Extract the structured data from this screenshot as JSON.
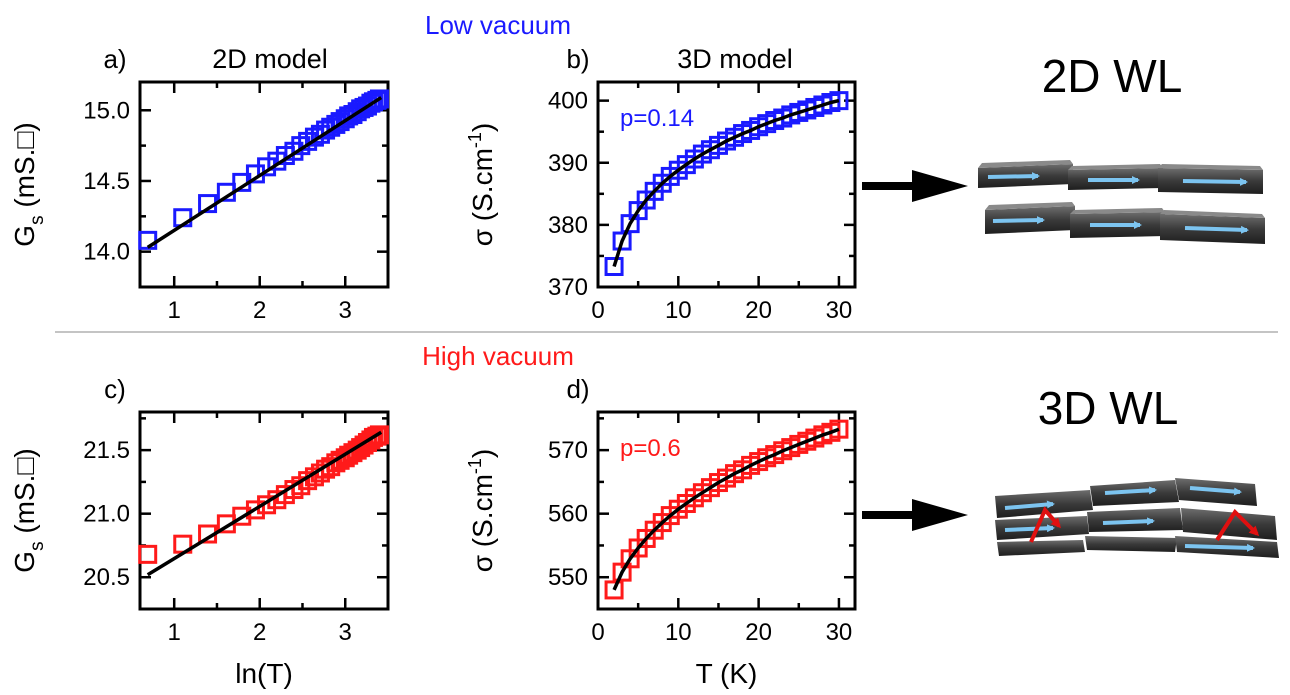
{
  "sections": {
    "top": {
      "label": "Low vacuum",
      "color": "#1a1aff"
    },
    "bottom": {
      "label": "High vacuum",
      "color": "#ff1a1a"
    }
  },
  "colors": {
    "fit": "#000000",
    "low": "#1a1aff",
    "high": "#ff1a1a",
    "arrow": "#000000",
    "flake_arrow": "#7cc4f0",
    "scatter_arrow": "#e01010"
  },
  "illustrations": [
    {
      "id": "2d",
      "label": "2D WL",
      "icons": [
        "graphene-flake-stack-icon"
      ]
    },
    {
      "id": "3d",
      "label": "3D WL",
      "icons": [
        "graphene-flake-network-icon"
      ]
    }
  ],
  "chart_data": [
    {
      "id": "a",
      "panel_label": "a)",
      "title": "2D model",
      "type": "scatter",
      "xlabel": "",
      "ylabel": "G",
      "ylabel_sub": "s",
      "ylabel_unit": " (mS.□)",
      "xlim": [
        0.6,
        3.5
      ],
      "ylim": [
        13.75,
        15.2
      ],
      "xticks": [
        1,
        2,
        3
      ],
      "yticks": [
        14.0,
        14.5,
        15.0
      ],
      "xtick_labels": [
        "1",
        "2",
        "3"
      ],
      "ytick_labels": [
        "14.0",
        "14.5",
        "15.0"
      ],
      "annotation": "",
      "series": [
        {
          "kind": "markers",
          "color": "#1a1aff",
          "x": [
            0.69,
            1.1,
            1.39,
            1.61,
            1.79,
            1.95,
            2.08,
            2.2,
            2.3,
            2.4,
            2.48,
            2.56,
            2.64,
            2.71,
            2.77,
            2.83,
            2.89,
            2.94,
            3.0,
            3.04,
            3.09,
            3.14,
            3.18,
            3.22,
            3.26,
            3.3,
            3.33,
            3.37,
            3.4
          ],
          "y": [
            14.08,
            14.24,
            14.34,
            14.42,
            14.49,
            14.55,
            14.6,
            14.64,
            14.68,
            14.71,
            14.75,
            14.78,
            14.81,
            14.83,
            14.86,
            14.88,
            14.9,
            14.92,
            14.94,
            14.96,
            14.97,
            14.99,
            15.01,
            15.02,
            15.03,
            15.05,
            15.06,
            15.07,
            15.08
          ]
        },
        {
          "kind": "line",
          "color": "#000000",
          "x": [
            0.69,
            3.42
          ],
          "y": [
            14.03,
            15.09
          ]
        }
      ]
    },
    {
      "id": "b",
      "panel_label": "b)",
      "title": "3D model",
      "type": "scatter",
      "xlabel": "",
      "ylabel": "σ (S.cm",
      "ylabel_sup": "-1",
      "ylabel_unit": ")",
      "xlim": [
        0,
        32
      ],
      "ylim": [
        370,
        403
      ],
      "xticks": [
        0,
        10,
        20,
        30
      ],
      "yticks": [
        370,
        380,
        390,
        400
      ],
      "xtick_labels": [
        "0",
        "10",
        "20",
        "30"
      ],
      "ytick_labels": [
        "370",
        "380",
        "390",
        "400"
      ],
      "annotation": "p=0.14",
      "series": [
        {
          "kind": "markers",
          "color": "#1a1aff",
          "x": [
            2,
            3,
            4,
            5,
            6,
            7,
            8,
            9,
            10,
            11,
            12,
            13,
            14,
            15,
            16,
            17,
            18,
            19,
            20,
            21,
            22,
            23,
            24,
            25,
            26,
            27,
            28,
            29,
            30
          ],
          "y": [
            373.3,
            377.4,
            380.2,
            382.3,
            384.0,
            385.4,
            386.7,
            387.8,
            388.8,
            389.7,
            390.6,
            391.4,
            392.1,
            392.8,
            393.5,
            394.1,
            394.7,
            395.2,
            395.8,
            396.3,
            396.8,
            397.2,
            397.7,
            398.1,
            398.5,
            398.9,
            399.3,
            399.7,
            400.0
          ]
        },
        {
          "kind": "line",
          "color": "#000000",
          "x": [
            2,
            3,
            4,
            5,
            6,
            7,
            8,
            9,
            10,
            11,
            12,
            13,
            14,
            15,
            16,
            17,
            18,
            19,
            20,
            21,
            22,
            23,
            24,
            25,
            26,
            27,
            28,
            29,
            30
          ],
          "y": [
            373.3,
            377.4,
            380.2,
            382.3,
            384.0,
            385.4,
            386.7,
            387.8,
            388.8,
            389.7,
            390.6,
            391.4,
            392.1,
            392.8,
            393.5,
            394.1,
            394.7,
            395.2,
            395.8,
            396.3,
            396.8,
            397.2,
            397.7,
            398.1,
            398.5,
            398.9,
            399.3,
            399.7,
            400.0
          ]
        }
      ]
    },
    {
      "id": "c",
      "panel_label": "c)",
      "title": "",
      "type": "scatter",
      "xlabel": "ln(T)",
      "ylabel": "G",
      "ylabel_sub": "s",
      "ylabel_unit": " (mS.□)",
      "xlim": [
        0.6,
        3.5
      ],
      "ylim": [
        20.25,
        21.8
      ],
      "xticks": [
        1,
        2,
        3
      ],
      "yticks": [
        20.5,
        21.0,
        21.5
      ],
      "xtick_labels": [
        "1",
        "2",
        "3"
      ],
      "ytick_labels": [
        "20.5",
        "21.0",
        "21.5"
      ],
      "annotation": "",
      "series": [
        {
          "kind": "markers",
          "color": "#ff1a1a",
          "x": [
            0.69,
            1.1,
            1.39,
            1.61,
            1.79,
            1.95,
            2.08,
            2.2,
            2.3,
            2.4,
            2.48,
            2.56,
            2.64,
            2.71,
            2.77,
            2.83,
            2.89,
            2.94,
            3.0,
            3.04,
            3.09,
            3.14,
            3.18,
            3.22,
            3.26,
            3.3,
            3.33,
            3.37,
            3.4
          ],
          "y": [
            20.68,
            20.76,
            20.84,
            20.92,
            20.98,
            21.03,
            21.07,
            21.11,
            21.15,
            21.19,
            21.22,
            21.26,
            21.29,
            21.32,
            21.35,
            21.37,
            21.4,
            21.42,
            21.44,
            21.46,
            21.48,
            21.5,
            21.52,
            21.54,
            21.56,
            21.58,
            21.6,
            21.61,
            21.62
          ]
        },
        {
          "kind": "line",
          "color": "#000000",
          "x": [
            0.69,
            3.42
          ],
          "y": [
            20.52,
            21.64
          ]
        }
      ]
    },
    {
      "id": "d",
      "panel_label": "d)",
      "title": "",
      "type": "scatter",
      "xlabel": "T (K)",
      "ylabel": "σ (S.cm",
      "ylabel_sup": "-1",
      "ylabel_unit": ")",
      "xlim": [
        0,
        32
      ],
      "ylim": [
        545,
        576
      ],
      "xticks": [
        0,
        10,
        20,
        30
      ],
      "yticks": [
        550,
        560,
        570
      ],
      "xtick_labels": [
        "0",
        "10",
        "20",
        "30"
      ],
      "ytick_labels": [
        "550",
        "560",
        "570"
      ],
      "annotation": "p=0.6",
      "series": [
        {
          "kind": "markers",
          "color": "#ff1a1a",
          "x": [
            2,
            3,
            4,
            5,
            6,
            7,
            8,
            9,
            10,
            11,
            12,
            13,
            14,
            15,
            16,
            17,
            18,
            19,
            20,
            21,
            22,
            23,
            24,
            25,
            26,
            27,
            28,
            29,
            30
          ],
          "y": [
            548.0,
            550.8,
            552.9,
            554.6,
            556.1,
            557.4,
            558.6,
            559.7,
            560.7,
            561.6,
            562.5,
            563.3,
            564.1,
            564.9,
            565.6,
            566.3,
            566.9,
            567.6,
            568.2,
            568.8,
            569.3,
            569.9,
            570.4,
            570.9,
            571.4,
            571.9,
            572.4,
            572.8,
            573.3
          ]
        },
        {
          "kind": "line",
          "color": "#000000",
          "x": [
            2,
            3,
            4,
            5,
            6,
            7,
            8,
            9,
            10,
            11,
            12,
            13,
            14,
            15,
            16,
            17,
            18,
            19,
            20,
            21,
            22,
            23,
            24,
            25,
            26,
            27,
            28,
            29,
            30
          ],
          "y": [
            548.0,
            550.8,
            552.9,
            554.6,
            556.1,
            557.4,
            558.6,
            559.7,
            560.7,
            561.6,
            562.5,
            563.3,
            564.1,
            564.9,
            565.6,
            566.3,
            566.9,
            567.6,
            568.2,
            568.8,
            569.3,
            569.9,
            570.4,
            570.9,
            571.4,
            571.9,
            572.4,
            572.8,
            573.3
          ]
        }
      ]
    }
  ]
}
